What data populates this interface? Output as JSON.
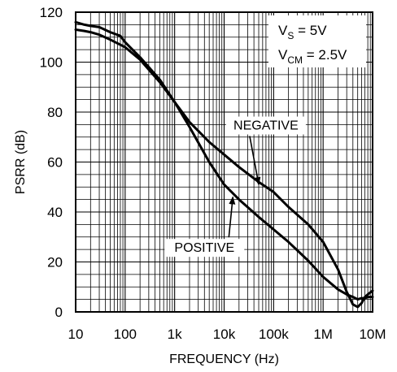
{
  "chart_data": {
    "type": "line",
    "xlabel": "FREQUENCY (Hz)",
    "ylabel": "PSRR (dB)",
    "x_scale": "log",
    "xlim": [
      10,
      10000000
    ],
    "ylim": [
      0,
      120
    ],
    "grid": true,
    "x_ticks": [
      {
        "value": 10,
        "label": "10"
      },
      {
        "value": 100,
        "label": "100"
      },
      {
        "value": 1000,
        "label": "1k"
      },
      {
        "value": 10000,
        "label": "10k"
      },
      {
        "value": 100000,
        "label": "100k"
      },
      {
        "value": 1000000,
        "label": "1M"
      },
      {
        "value": 10000000,
        "label": "10M"
      }
    ],
    "y_ticks": [
      0,
      20,
      40,
      60,
      80,
      100,
      120
    ],
    "conditions": {
      "vs_label": "V",
      "vs_sub": "S",
      "vs_value": " = 5V",
      "vcm_label": "V",
      "vcm_sub": "CM",
      "vcm_value": " = 2.5V"
    },
    "series": [
      {
        "name": "NEGATIVE",
        "label_at": {
          "x": 70000,
          "y": 73
        },
        "arrow_to": {
          "x": 50000,
          "y": 51
        },
        "points": [
          [
            10,
            116
          ],
          [
            15,
            115
          ],
          [
            20,
            114.5
          ],
          [
            30,
            114
          ],
          [
            50,
            112
          ],
          [
            80,
            110.5
          ],
          [
            100,
            108
          ],
          [
            200,
            102
          ],
          [
            500,
            93
          ],
          [
            1000,
            84
          ],
          [
            2000,
            76
          ],
          [
            5000,
            68
          ],
          [
            10000,
            63
          ],
          [
            20000,
            58
          ],
          [
            50000,
            52
          ],
          [
            100000,
            48
          ],
          [
            200000,
            42
          ],
          [
            500000,
            35
          ],
          [
            1000000,
            28
          ],
          [
            2000000,
            17
          ],
          [
            3000000,
            8
          ],
          [
            4000000,
            3
          ],
          [
            5000000,
            2
          ],
          [
            6000000,
            3.5
          ],
          [
            7000000,
            6
          ],
          [
            8000000,
            7
          ],
          [
            10000000,
            8.5
          ]
        ]
      },
      {
        "name": "POSITIVE",
        "label_at": {
          "x": 4000,
          "y": 24
        },
        "arrow_to": {
          "x": 15000,
          "y": 46
        },
        "points": [
          [
            10,
            113
          ],
          [
            15,
            112.5
          ],
          [
            20,
            112
          ],
          [
            30,
            111
          ],
          [
            50,
            109
          ],
          [
            100,
            106
          ],
          [
            200,
            101
          ],
          [
            500,
            92
          ],
          [
            1000,
            84
          ],
          [
            2000,
            74
          ],
          [
            5000,
            60
          ],
          [
            10000,
            51
          ],
          [
            20000,
            45
          ],
          [
            50000,
            38
          ],
          [
            100000,
            33
          ],
          [
            200000,
            28
          ],
          [
            500000,
            20.5
          ],
          [
            1000000,
            14
          ],
          [
            2000000,
            9
          ],
          [
            3000000,
            7
          ],
          [
            4000000,
            6
          ],
          [
            5000000,
            5
          ],
          [
            6000000,
            5.5
          ],
          [
            7000000,
            5.5
          ],
          [
            8000000,
            6
          ],
          [
            10000000,
            6
          ]
        ]
      }
    ]
  }
}
